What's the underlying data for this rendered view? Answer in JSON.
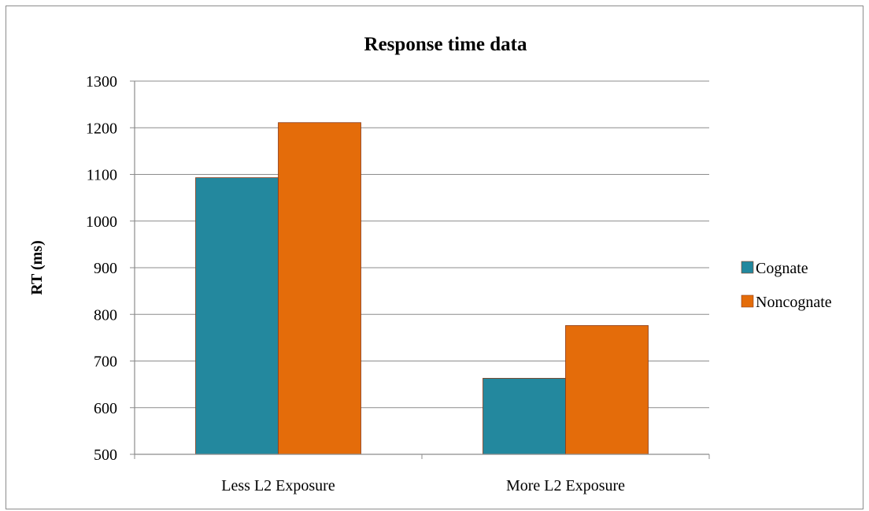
{
  "chart_data": {
    "type": "bar",
    "title": "Response time data",
    "xlabel": "",
    "ylabel": "RT (ms)",
    "ylim": [
      500,
      1300
    ],
    "yticks": [
      500,
      600,
      700,
      800,
      900,
      1000,
      1100,
      1200,
      1300
    ],
    "categories": [
      "Less L2 Exposure",
      "More L2 Exposure"
    ],
    "series": [
      {
        "name": "Cognate",
        "color": "#23889e",
        "values": [
          1093,
          663
        ]
      },
      {
        "name": "Noncognate",
        "color": "#e46c0a",
        "values": [
          1211,
          776
        ]
      }
    ],
    "grid": true,
    "legend_position": "right"
  }
}
